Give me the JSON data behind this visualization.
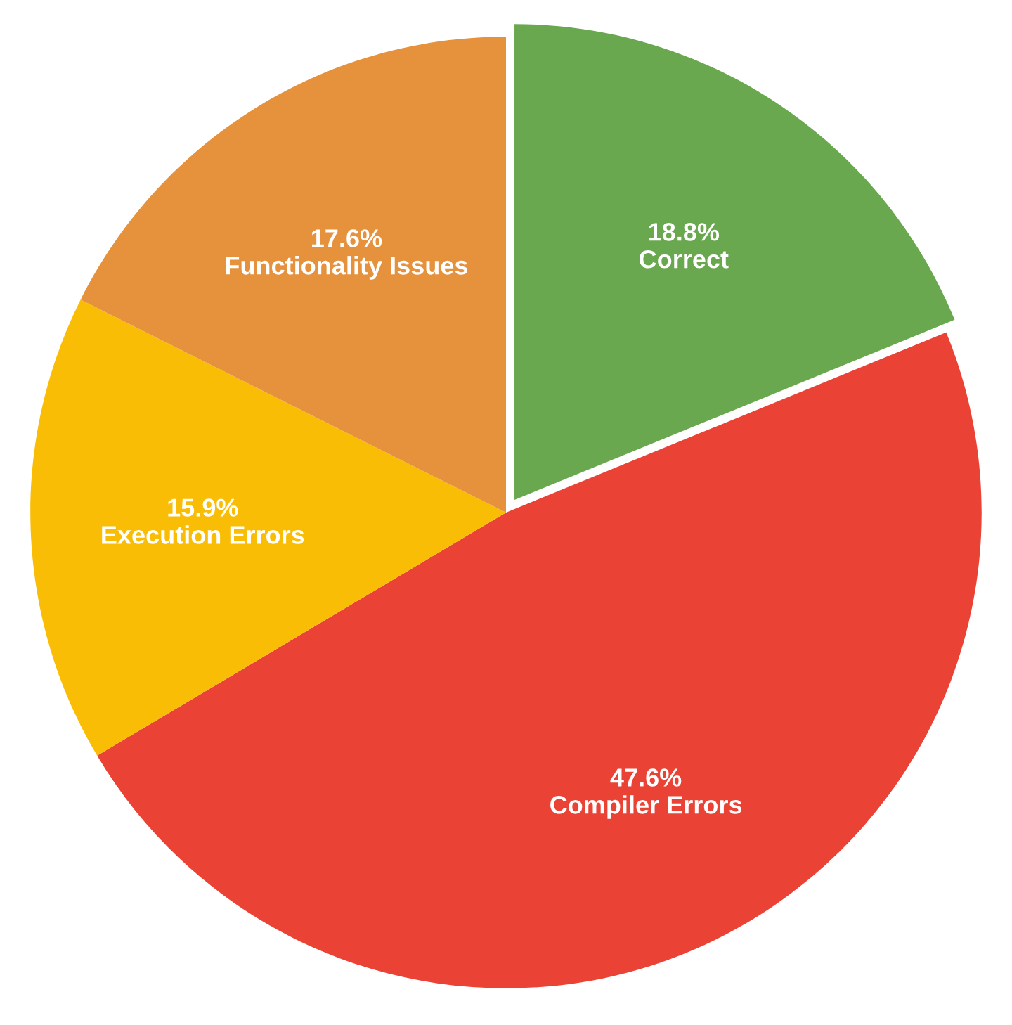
{
  "chart_data": {
    "type": "pie",
    "categories": [
      "Correct",
      "Compiler Errors",
      "Execution Errors",
      "Functionality Issues"
    ],
    "values": [
      18.8,
      47.6,
      15.9,
      17.6
    ],
    "value_labels": [
      "18.8%",
      "47.6%",
      "15.9%",
      "17.6%"
    ],
    "colors": [
      "#6aa84f",
      "#ea4335",
      "#f9bd05",
      "#e6913b"
    ],
    "legend": false
  }
}
